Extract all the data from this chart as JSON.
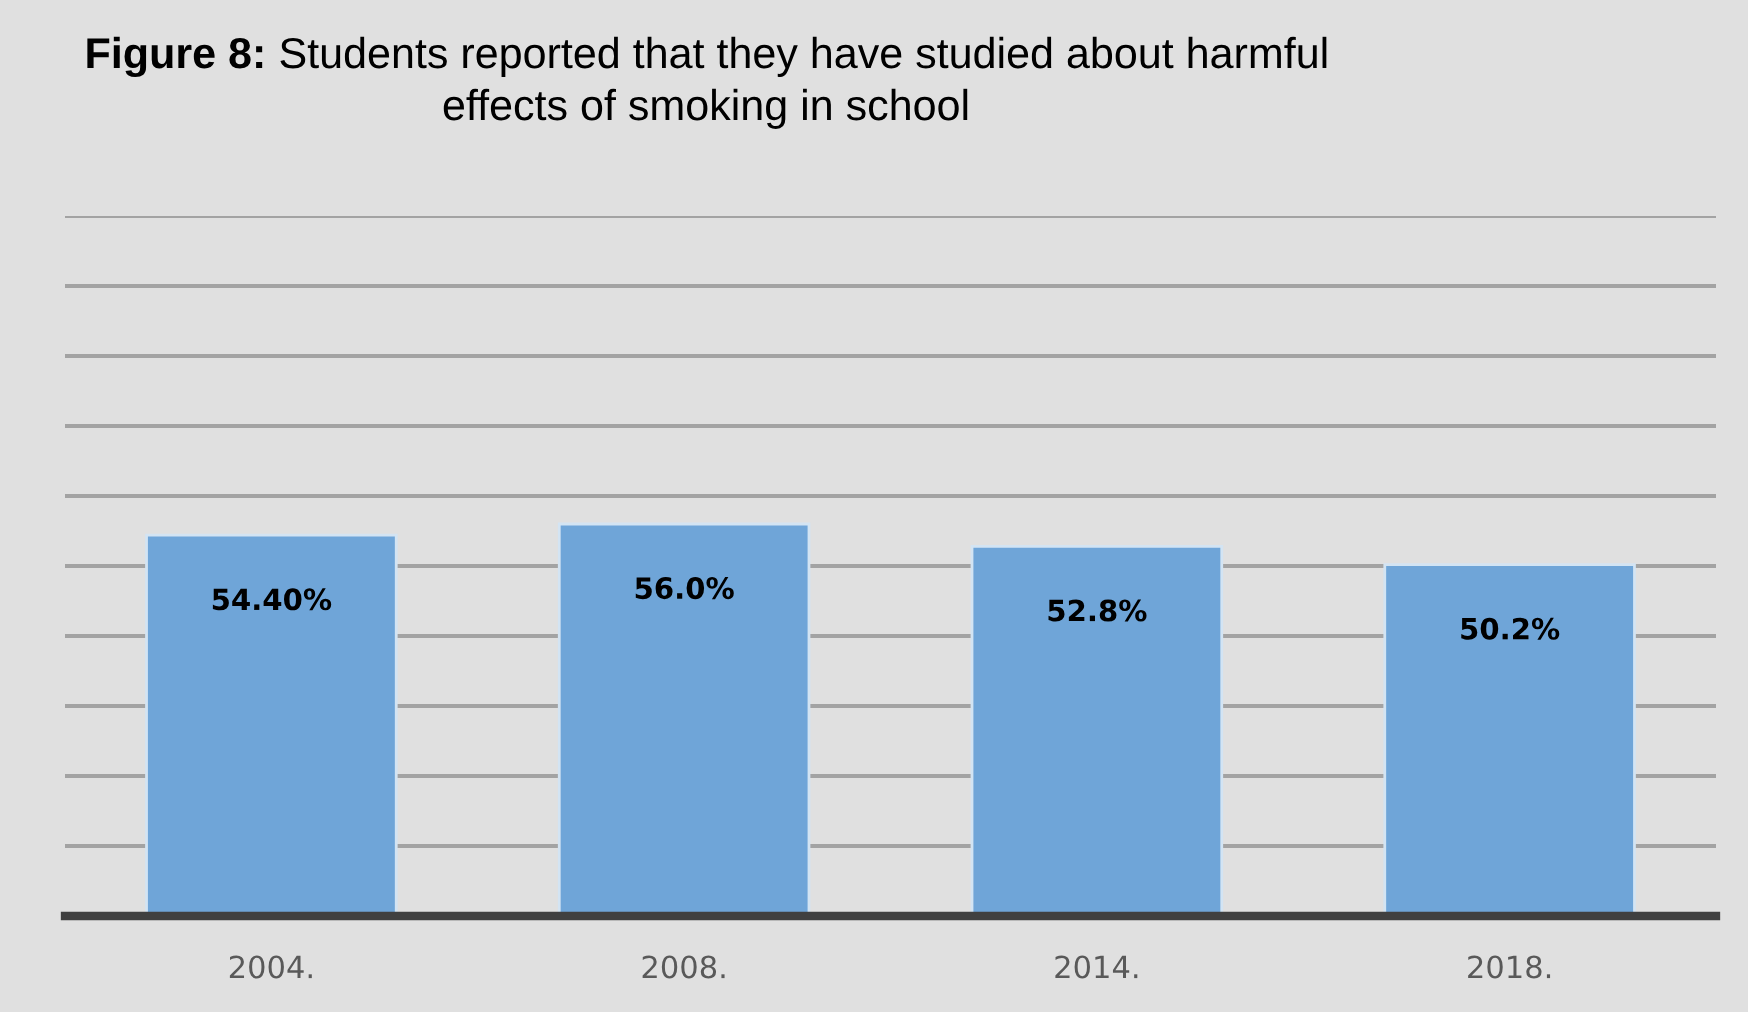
{
  "chart_data": {
    "type": "bar",
    "title": "Figure 8: Students reported that they have studied about harmful\neffects of smoking in school",
    "categories": [
      "2004.",
      "2008.",
      "2014.",
      "2018."
    ],
    "values": [
      54.4,
      56.0,
      52.8,
      50.2
    ],
    "value_labels": [
      "54.40%",
      "56.0%",
      "52.8%",
      "50.2%"
    ],
    "color": "#6fa5d8",
    "ylim": [
      0,
      100
    ],
    "yticks": [
      {
        "value": 0,
        "label": null
      },
      {
        "value": 10,
        "label": null
      },
      {
        "value": 20,
        "label": null
      },
      {
        "value": 30,
        "label": null
      },
      {
        "value": 40,
        "label": null
      },
      {
        "value": 50,
        "label": null
      },
      {
        "value": 60,
        "label": null
      },
      {
        "value": 70,
        "label": null
      },
      {
        "value": 80,
        "label": null
      },
      {
        "value": 90,
        "label": null
      },
      {
        "value": 100,
        "label": null
      }
    ],
    "grid": "y",
    "tick_labels": "x"
  }
}
